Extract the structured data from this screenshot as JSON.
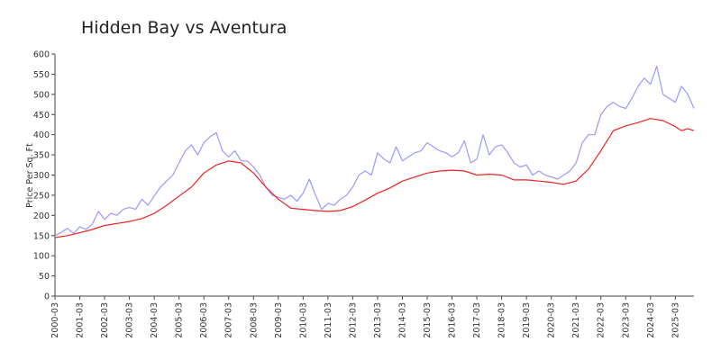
{
  "chart_data": {
    "type": "line",
    "title": "Hidden Bay vs Aventura",
    "ylabel": "Price Per Sq. Ft",
    "xlabel": "",
    "ylim": [
      0,
      600
    ],
    "yticks": [
      0,
      50,
      100,
      150,
      200,
      250,
      300,
      350,
      400,
      450,
      500,
      550,
      600
    ],
    "x_start": "2000-03",
    "x_end": "2025-12",
    "xticks": [
      "2000-03",
      "2001-03",
      "2002-03",
      "2003-03",
      "2004-03",
      "2005-03",
      "2006-03",
      "2007-03",
      "2008-03",
      "2009-03",
      "2010-03",
      "2011-03",
      "2012-03",
      "2013-03",
      "2014-03",
      "2015-03",
      "2016-03",
      "2017-03",
      "2018-03",
      "2019-03",
      "2020-03",
      "2021-03",
      "2022-03",
      "2023-03",
      "2024-03",
      "2025-03"
    ],
    "grid": false,
    "legend": "none",
    "series": [
      {
        "color": "#9999ff",
        "points": [
          [
            "2000-03",
            150
          ],
          [
            "2000-06",
            158
          ],
          [
            "2000-09",
            168
          ],
          [
            "2000-12",
            155
          ],
          [
            "2001-03",
            172
          ],
          [
            "2001-06",
            165
          ],
          [
            "2001-09",
            178
          ],
          [
            "2001-12",
            210
          ],
          [
            "2002-03",
            190
          ],
          [
            "2002-06",
            205
          ],
          [
            "2002-09",
            200
          ],
          [
            "2002-12",
            215
          ],
          [
            "2003-03",
            220
          ],
          [
            "2003-06",
            215
          ],
          [
            "2003-09",
            240
          ],
          [
            "2003-12",
            225
          ],
          [
            "2004-03",
            248
          ],
          [
            "2004-06",
            270
          ],
          [
            "2004-09",
            285
          ],
          [
            "2004-12",
            300
          ],
          [
            "2005-03",
            330
          ],
          [
            "2005-06",
            360
          ],
          [
            "2005-09",
            375
          ],
          [
            "2005-12",
            350
          ],
          [
            "2006-03",
            380
          ],
          [
            "2006-06",
            395
          ],
          [
            "2006-09",
            405
          ],
          [
            "2006-12",
            360
          ],
          [
            "2007-03",
            345
          ],
          [
            "2007-06",
            360
          ],
          [
            "2007-09",
            335
          ],
          [
            "2007-12",
            335
          ],
          [
            "2008-03",
            320
          ],
          [
            "2008-06",
            300
          ],
          [
            "2008-09",
            270
          ],
          [
            "2008-12",
            250
          ],
          [
            "2009-03",
            245
          ],
          [
            "2009-06",
            240
          ],
          [
            "2009-09",
            250
          ],
          [
            "2009-12",
            235
          ],
          [
            "2010-03",
            255
          ],
          [
            "2010-06",
            290
          ],
          [
            "2010-09",
            250
          ],
          [
            "2010-12",
            215
          ],
          [
            "2011-03",
            230
          ],
          [
            "2011-06",
            225
          ],
          [
            "2011-09",
            240
          ],
          [
            "2011-12",
            250
          ],
          [
            "2012-03",
            270
          ],
          [
            "2012-06",
            300
          ],
          [
            "2012-09",
            310
          ],
          [
            "2012-12",
            300
          ],
          [
            "2013-03",
            355
          ],
          [
            "2013-06",
            340
          ],
          [
            "2013-09",
            330
          ],
          [
            "2013-12",
            370
          ],
          [
            "2014-03",
            335
          ],
          [
            "2014-06",
            345
          ],
          [
            "2014-09",
            355
          ],
          [
            "2014-12",
            360
          ],
          [
            "2015-03",
            380
          ],
          [
            "2015-06",
            370
          ],
          [
            "2015-09",
            360
          ],
          [
            "2015-12",
            355
          ],
          [
            "2016-03",
            345
          ],
          [
            "2016-06",
            355
          ],
          [
            "2016-09",
            385
          ],
          [
            "2016-12",
            330
          ],
          [
            "2017-03",
            340
          ],
          [
            "2017-06",
            400
          ],
          [
            "2017-09",
            350
          ],
          [
            "2017-12",
            370
          ],
          [
            "2018-03",
            375
          ],
          [
            "2018-06",
            355
          ],
          [
            "2018-09",
            330
          ],
          [
            "2018-12",
            320
          ],
          [
            "2019-03",
            325
          ],
          [
            "2019-06",
            300
          ],
          [
            "2019-09",
            310
          ],
          [
            "2019-12",
            300
          ],
          [
            "2020-03",
            295
          ],
          [
            "2020-06",
            290
          ],
          [
            "2020-09",
            300
          ],
          [
            "2020-12",
            310
          ],
          [
            "2021-03",
            330
          ],
          [
            "2021-06",
            380
          ],
          [
            "2021-09",
            400
          ],
          [
            "2021-12",
            400
          ],
          [
            "2022-03",
            450
          ],
          [
            "2022-06",
            470
          ],
          [
            "2022-09",
            480
          ],
          [
            "2022-12",
            470
          ],
          [
            "2023-03",
            465
          ],
          [
            "2023-06",
            490
          ],
          [
            "2023-09",
            520
          ],
          [
            "2023-12",
            540
          ],
          [
            "2024-03",
            525
          ],
          [
            "2024-06",
            570
          ],
          [
            "2024-09",
            500
          ],
          [
            "2024-12",
            490
          ],
          [
            "2025-03",
            480
          ],
          [
            "2025-06",
            520
          ],
          [
            "2025-09",
            500
          ],
          [
            "2025-12",
            465
          ]
        ]
      },
      {
        "color": "#ee2222",
        "points": [
          [
            "2000-03",
            145
          ],
          [
            "2000-09",
            150
          ],
          [
            "2001-03",
            157
          ],
          [
            "2001-09",
            165
          ],
          [
            "2002-03",
            175
          ],
          [
            "2002-09",
            180
          ],
          [
            "2003-03",
            185
          ],
          [
            "2003-09",
            192
          ],
          [
            "2004-03",
            205
          ],
          [
            "2004-09",
            225
          ],
          [
            "2005-03",
            248
          ],
          [
            "2005-09",
            270
          ],
          [
            "2006-03",
            305
          ],
          [
            "2006-09",
            325
          ],
          [
            "2007-03",
            335
          ],
          [
            "2007-09",
            330
          ],
          [
            "2008-03",
            305
          ],
          [
            "2008-09",
            270
          ],
          [
            "2009-03",
            240
          ],
          [
            "2009-09",
            218
          ],
          [
            "2010-03",
            215
          ],
          [
            "2010-09",
            212
          ],
          [
            "2011-03",
            210
          ],
          [
            "2011-09",
            212
          ],
          [
            "2012-03",
            222
          ],
          [
            "2012-09",
            238
          ],
          [
            "2013-03",
            255
          ],
          [
            "2013-09",
            268
          ],
          [
            "2014-03",
            285
          ],
          [
            "2014-09",
            295
          ],
          [
            "2015-03",
            305
          ],
          [
            "2015-09",
            310
          ],
          [
            "2016-03",
            312
          ],
          [
            "2016-09",
            310
          ],
          [
            "2017-03",
            300
          ],
          [
            "2017-09",
            302
          ],
          [
            "2018-03",
            300
          ],
          [
            "2018-09",
            288
          ],
          [
            "2019-03",
            288
          ],
          [
            "2019-09",
            285
          ],
          [
            "2020-03",
            282
          ],
          [
            "2020-09",
            277
          ],
          [
            "2021-03",
            285
          ],
          [
            "2021-09",
            315
          ],
          [
            "2022-03",
            360
          ],
          [
            "2022-09",
            410
          ],
          [
            "2023-03",
            422
          ],
          [
            "2023-09",
            430
          ],
          [
            "2024-03",
            440
          ],
          [
            "2024-09",
            435
          ],
          [
            "2025-03",
            420
          ],
          [
            "2025-06",
            410
          ],
          [
            "2025-09",
            415
          ],
          [
            "2025-12",
            410
          ]
        ]
      }
    ]
  }
}
